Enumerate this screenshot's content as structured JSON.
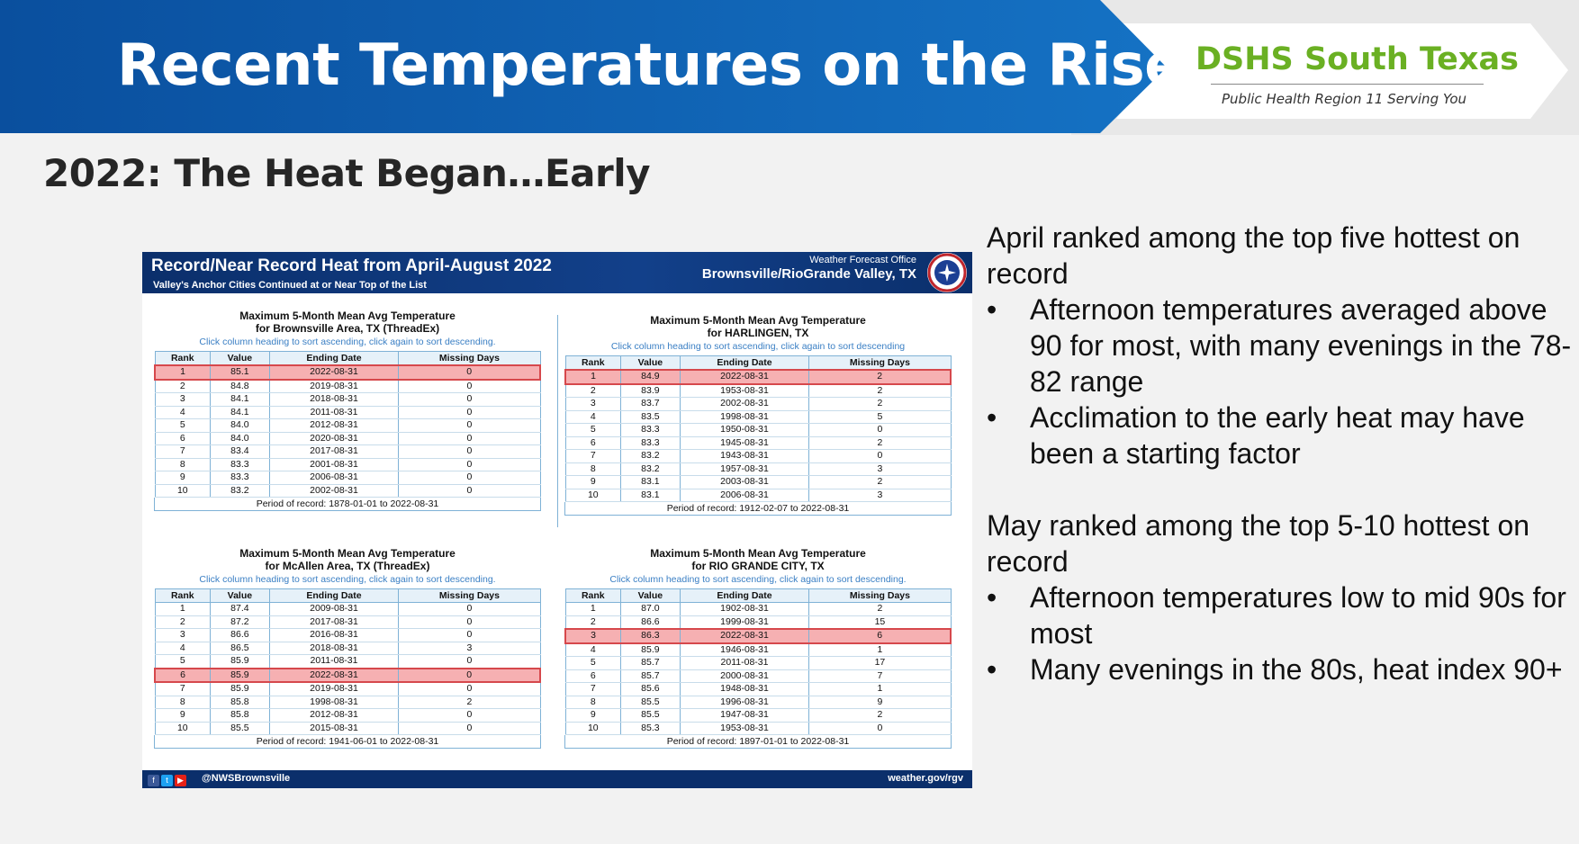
{
  "header": {
    "title": "Recent Temperatures  on the Rise",
    "org_name": "DSHS South Texas",
    "org_tagline": "Public Health Region 11 Serving You",
    "colors": {
      "banner_blue": "#1060b0",
      "org_green": "#6ab023"
    }
  },
  "subtitle": "2022:  The Heat Began…Early",
  "infographic": {
    "title": "Record/Near Record Heat from April-August 2022",
    "subtitle": "Valley's Anchor Cities Continued at or Near Top of the List",
    "office_label": "Weather Forecast Office",
    "office_location": "Brownsville/RioGrande Valley, TX",
    "logo_icon": "nws-logo-icon",
    "footer_handle": "@NWSBrownsville",
    "footer_url": "weather.gov/rgv",
    "footer_icons": [
      "facebook-icon",
      "twitter-icon",
      "youtube-icon"
    ],
    "columns": [
      "Rank",
      "Value",
      "Ending Date",
      "Missing Days"
    ],
    "hint": "Click column heading to sort ascending, click again to sort descending.",
    "hint_alt": "Click column heading to sort ascending, click again to sort descending",
    "tables": [
      {
        "title1": "Maximum 5-Month Mean Avg Temperature",
        "title2": "for Brownsville Area, TX (ThreadEx)",
        "highlight_rank": 1,
        "rows": [
          [
            "1",
            "85.1",
            "2022-08-31",
            "0"
          ],
          [
            "2",
            "84.8",
            "2019-08-31",
            "0"
          ],
          [
            "3",
            "84.1",
            "2018-08-31",
            "0"
          ],
          [
            "4",
            "84.1",
            "2011-08-31",
            "0"
          ],
          [
            "5",
            "84.0",
            "2012-08-31",
            "0"
          ],
          [
            "6",
            "84.0",
            "2020-08-31",
            "0"
          ],
          [
            "7",
            "83.4",
            "2017-08-31",
            "0"
          ],
          [
            "8",
            "83.3",
            "2001-08-31",
            "0"
          ],
          [
            "9",
            "83.3",
            "2006-08-31",
            "0"
          ],
          [
            "10",
            "83.2",
            "2002-08-31",
            "0"
          ]
        ],
        "period": "Period of record: 1878-01-01 to 2022-08-31"
      },
      {
        "title1": "Maximum 5-Month Mean Avg Temperature",
        "title2": "for HARLINGEN, TX",
        "highlight_rank": 1,
        "rows": [
          [
            "1",
            "84.9",
            "2022-08-31",
            "2"
          ],
          [
            "2",
            "83.9",
            "1953-08-31",
            "2"
          ],
          [
            "3",
            "83.7",
            "2002-08-31",
            "2"
          ],
          [
            "4",
            "83.5",
            "1998-08-31",
            "5"
          ],
          [
            "5",
            "83.3",
            "1950-08-31",
            "0"
          ],
          [
            "6",
            "83.3",
            "1945-08-31",
            "2"
          ],
          [
            "7",
            "83.2",
            "1943-08-31",
            "0"
          ],
          [
            "8",
            "83.2",
            "1957-08-31",
            "3"
          ],
          [
            "9",
            "83.1",
            "2003-08-31",
            "2"
          ],
          [
            "10",
            "83.1",
            "2006-08-31",
            "3"
          ]
        ],
        "period": "Period of record: 1912-02-07 to 2022-08-31"
      },
      {
        "title1": "Maximum 5-Month Mean Avg Temperature",
        "title2": "for McAllen Area, TX (ThreadEx)",
        "highlight_rank": 6,
        "rows": [
          [
            "1",
            "87.4",
            "2009-08-31",
            "0"
          ],
          [
            "2",
            "87.2",
            "2017-08-31",
            "0"
          ],
          [
            "3",
            "86.6",
            "2016-08-31",
            "0"
          ],
          [
            "4",
            "86.5",
            "2018-08-31",
            "3"
          ],
          [
            "5",
            "85.9",
            "2011-08-31",
            "0"
          ],
          [
            "6",
            "85.9",
            "2022-08-31",
            "0"
          ],
          [
            "7",
            "85.9",
            "2019-08-31",
            "0"
          ],
          [
            "8",
            "85.8",
            "1998-08-31",
            "2"
          ],
          [
            "9",
            "85.8",
            "2012-08-31",
            "0"
          ],
          [
            "10",
            "85.5",
            "2015-08-31",
            "0"
          ]
        ],
        "period": "Period of record: 1941-06-01 to 2022-08-31"
      },
      {
        "title1": "Maximum 5-Month Mean Avg Temperature",
        "title2": "for RIO GRANDE CITY, TX",
        "highlight_rank": 3,
        "rows": [
          [
            "1",
            "87.0",
            "1902-08-31",
            "2"
          ],
          [
            "2",
            "86.6",
            "1999-08-31",
            "15"
          ],
          [
            "3",
            "86.3",
            "2022-08-31",
            "6"
          ],
          [
            "4",
            "85.9",
            "1946-08-31",
            "1"
          ],
          [
            "5",
            "85.7",
            "2011-08-31",
            "17"
          ],
          [
            "6",
            "85.7",
            "2000-08-31",
            "7"
          ],
          [
            "7",
            "85.6",
            "1948-08-31",
            "1"
          ],
          [
            "8",
            "85.5",
            "1996-08-31",
            "9"
          ],
          [
            "9",
            "85.5",
            "1947-08-31",
            "2"
          ],
          [
            "10",
            "85.3",
            "1953-08-31",
            "0"
          ]
        ],
        "period": "Period of record: 1897-01-01 to 2022-08-31"
      }
    ]
  },
  "notes": {
    "bullet_char": "•",
    "april_lead": "April ranked among the top five hottest on record",
    "april_points": [
      "Afternoon temperatures averaged above 90 for most, with many evenings in the 78-82 range",
      "Acclimation to the early heat may have been a starting factor"
    ],
    "may_lead": "May ranked among the top 5-10 hottest on record",
    "may_points": [
      "Afternoon temperatures low to mid 90s for most",
      "Many evenings in the 80s, heat index 90+"
    ]
  }
}
